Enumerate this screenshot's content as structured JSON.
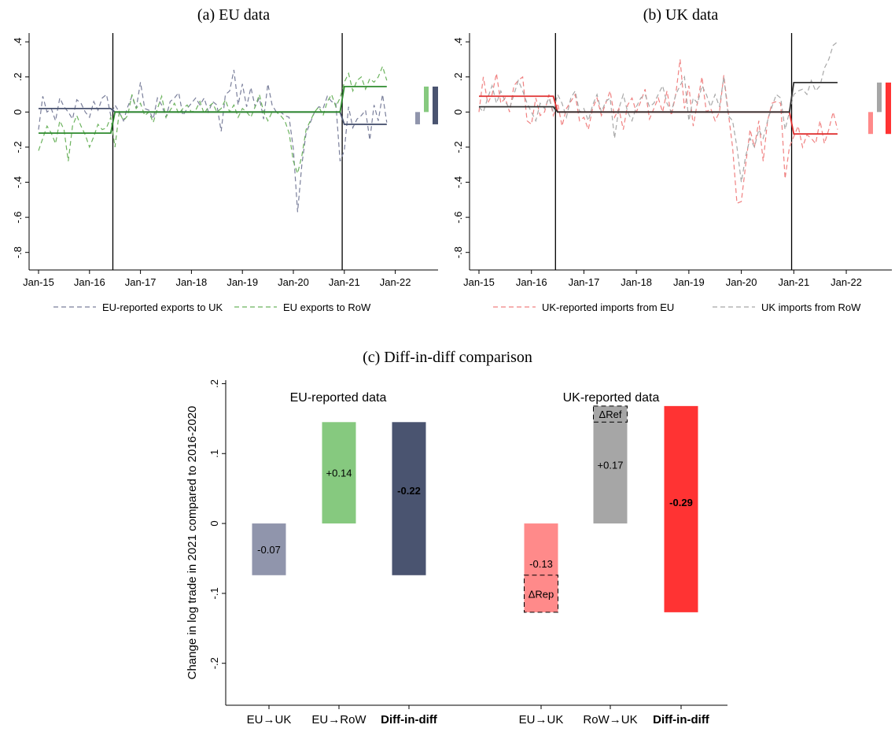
{
  "chart_data": [
    {
      "type": "line",
      "title": "(a) EU data",
      "x_ticks": [
        "Jan-15",
        "Jan-16",
        "Jan-17",
        "Jan-18",
        "Jan-19",
        "Jan-20",
        "Jan-21",
        "Jan-22"
      ],
      "y_ticks": [
        ".4",
        ".2",
        "0",
        "-.2",
        "-.4",
        "-.6",
        "-.8"
      ],
      "ylim": [
        -0.9,
        0.45
      ],
      "x_range_months": [
        "Jan-15",
        "Nov-21"
      ],
      "vlines": [
        "Jun-16",
        "Dec-20"
      ],
      "grid": false,
      "legend_position": "bottom",
      "series": [
        {
          "name": "EU-reported exports to UK",
          "style": "dashed",
          "color": "#7a7f9b",
          "values": [
            -0.1,
            0.09,
            0.0,
            0.02,
            -0.05,
            0.08,
            0.03,
            0.0,
            -0.04,
            0.07,
            0.05,
            0.0,
            -0.03,
            0.06,
            0.01,
            0.08,
            0.1,
            -0.02,
            0.04,
            0.0,
            -0.05,
            0.03,
            0.09,
            0.02,
            0.17,
            0.02,
            0.01,
            -0.04,
            0.08,
            0.04,
            -0.03,
            0.06,
            0.08,
            0.11,
            -0.02,
            0.02,
            0.05,
            0.08,
            0.04,
            0.08,
            0.0,
            0.06,
            0.04,
            -0.11,
            0.1,
            0.12,
            0.24,
            0.04,
            0.16,
            0.03,
            0.14,
            0.03,
            0.08,
            -0.04,
            0.16,
            0.04,
            0.0,
            0.0,
            -0.02,
            -0.03,
            -0.21,
            -0.57,
            -0.3,
            -0.12,
            -0.06,
            0.0,
            0.03,
            0.02,
            0.09,
            0.06,
            0.05,
            -0.28,
            -0.22,
            0.03,
            -0.09,
            -0.04,
            -0.02,
            0.01,
            -0.16,
            0.04,
            -0.05,
            0.1,
            -0.06
          ]
        },
        {
          "name": "EU exports to RoW",
          "style": "dashed",
          "color": "#6cb35e",
          "values": [
            -0.22,
            -0.15,
            -0.08,
            -0.12,
            -0.18,
            -0.05,
            -0.1,
            -0.28,
            -0.08,
            -0.02,
            -0.08,
            -0.13,
            -0.2,
            -0.14,
            -0.07,
            -0.1,
            -0.09,
            -0.03,
            -0.2,
            0.0,
            -0.05,
            -0.02,
            0.1,
            0.02,
            0.05,
            -0.02,
            0.0,
            -0.06,
            0.02,
            0.09,
            -0.03,
            0.01,
            0.05,
            -0.01,
            0.02,
            0.04,
            0.0,
            0.01,
            0.06,
            -0.01,
            0.03,
            0.05,
            0.0,
            0.02,
            0.07,
            0.0,
            0.04,
            -0.03,
            0.02,
            0.0,
            -0.03,
            0.03,
            0.1,
            0.0,
            -0.05,
            0.0,
            0.0,
            -0.02,
            -0.05,
            -0.12,
            -0.28,
            -0.35,
            -0.25,
            -0.1,
            -0.05,
            0.0,
            0.03,
            -0.02,
            0.06,
            0.1,
            0.03,
            0.08,
            0.17,
            0.22,
            0.12,
            0.18,
            0.2,
            0.13,
            0.19,
            0.17,
            0.2,
            0.26,
            0.18
          ]
        },
        {
          "name": "EU-reported exports to UK (mean)",
          "style": "solid",
          "color": "#4a5470",
          "segments": [
            {
              "from": "Jan-15",
              "to": "Jun-16",
              "value": 0.02
            },
            {
              "from": "Jul-16",
              "to": "Dec-20",
              "value": 0.0
            },
            {
              "from": "Jan-21",
              "to": "Nov-21",
              "value": -0.07
            }
          ]
        },
        {
          "name": "EU exports to RoW (mean)",
          "style": "solid",
          "color": "#2e8b2e",
          "segments": [
            {
              "from": "Jan-15",
              "to": "Jun-16",
              "value": -0.12
            },
            {
              "from": "Jul-16",
              "to": "Dec-20",
              "value": 0.0
            },
            {
              "from": "Jan-21",
              "to": "Nov-21",
              "value": 0.145
            }
          ]
        }
      ],
      "side_bars": [
        {
          "color": "#9095ac",
          "from": 0,
          "to": -0.07
        },
        {
          "color": "#86c97f",
          "from": 0,
          "to": 0.145
        },
        {
          "color": "#4a5470",
          "from": -0.07,
          "to": 0.145
        }
      ]
    },
    {
      "type": "line",
      "title": "(b) UK data",
      "x_ticks": [
        "Jan-15",
        "Jan-16",
        "Jan-17",
        "Jan-18",
        "Jan-19",
        "Jan-20",
        "Jan-21",
        "Jan-22"
      ],
      "y_ticks": [
        ".4",
        ".2",
        "0",
        "-.2",
        "-.4",
        "-.6",
        "-.8"
      ],
      "ylim": [
        -0.9,
        0.45
      ],
      "x_range_months": [
        "Jan-15",
        "Nov-21"
      ],
      "vlines": [
        "Jun-16",
        "Dec-20"
      ],
      "grid": false,
      "legend_position": "bottom",
      "series": [
        {
          "name": "UK-reported imports from EU",
          "style": "dashed",
          "color": "#f08080",
          "values": [
            0.0,
            0.2,
            0.05,
            0.1,
            0.22,
            0.05,
            0.08,
            0.0,
            0.15,
            0.18,
            0.2,
            -0.05,
            -0.07,
            0.08,
            -0.02,
            0.0,
            0.1,
            -0.02,
            0.05,
            -0.08,
            0.02,
            0.06,
            0.1,
            -0.05,
            -0.03,
            -0.1,
            0.02,
            0.08,
            -0.02,
            0.05,
            0.12,
            -0.03,
            0.02,
            -0.1,
            0.04,
            0.08,
            0.0,
            0.06,
            0.13,
            -0.04,
            0.02,
            0.08,
            0.0,
            0.12,
            -0.02,
            0.1,
            0.3,
            0.02,
            0.15,
            -0.08,
            0.06,
            0.2,
            0.0,
            0.02,
            -0.05,
            0.0,
            0.21,
            0.0,
            -0.2,
            -0.52,
            -0.51,
            -0.3,
            -0.1,
            -0.2,
            -0.05,
            -0.28,
            -0.05,
            0.05,
            0.06,
            0.05,
            -0.38,
            -0.2,
            -0.14,
            -0.08,
            -0.2,
            -0.13,
            -0.15,
            -0.18,
            -0.05,
            -0.18,
            -0.1,
            0.0,
            -0.1
          ]
        },
        {
          "name": "UK imports from RoW",
          "style": "dashed",
          "color": "#a8a8a8",
          "values": [
            0.03,
            0.0,
            0.08,
            0.15,
            0.05,
            0.12,
            0.06,
            0.02,
            0.1,
            0.18,
            0.12,
            0.05,
            0.0,
            -0.05,
            0.05,
            0.02,
            0.08,
            0.0,
            0.1,
            0.05,
            -0.03,
            0.08,
            0.12,
            0.0,
            0.02,
            -0.05,
            0.04,
            0.1,
            0.0,
            0.06,
            0.08,
            -0.15,
            0.02,
            0.1,
            0.0,
            -0.05,
            0.03,
            0.08,
            0.1,
            0.03,
            0.05,
            0.1,
            0.15,
            0.05,
            0.0,
            0.1,
            0.15,
            0.2,
            -0.05,
            0.08,
            0.05,
            0.15,
            0.1,
            0.03,
            0.1,
            0.03,
            0.2,
            -0.02,
            -0.05,
            -0.2,
            -0.4,
            -0.25,
            -0.15,
            -0.2,
            -0.1,
            -0.15,
            -0.05,
            0.03,
            0.1,
            0.08,
            -0.1,
            0.0,
            0.1,
            0.12,
            0.13,
            0.1,
            0.18,
            0.12,
            0.15,
            0.25,
            0.3,
            0.38,
            0.4
          ]
        },
        {
          "name": "UK-reported imports from EU (mean)",
          "style": "solid",
          "color": "#e03030",
          "segments": [
            {
              "from": "Jan-15",
              "to": "Jun-16",
              "value": 0.09
            },
            {
              "from": "Jul-16",
              "to": "Dec-20",
              "value": 0.0
            },
            {
              "from": "Jan-21",
              "to": "Nov-21",
              "value": -0.125
            }
          ]
        },
        {
          "name": "UK imports from RoW (mean)",
          "style": "solid",
          "color": "#333333",
          "segments": [
            {
              "from": "Jan-15",
              "to": "Jun-16",
              "value": 0.03
            },
            {
              "from": "Jul-16",
              "to": "Dec-20",
              "value": 0.0
            },
            {
              "from": "Jan-21",
              "to": "Nov-21",
              "value": 0.168
            }
          ]
        }
      ],
      "side_bars": [
        {
          "color": "#ff8a8a",
          "from": 0,
          "to": -0.125
        },
        {
          "color": "#a6a6a6",
          "from": 0,
          "to": 0.168
        },
        {
          "color": "#ff3333",
          "from": -0.125,
          "to": 0.168
        }
      ]
    },
    {
      "type": "bar",
      "title": "(c) Diff-in-diff comparison",
      "ylabel": "Change in log trade in 2021 compared to 2016-2020",
      "y_ticks": [
        ".2",
        ".1",
        "0",
        "-.1",
        "-.2"
      ],
      "ylim": [
        -0.26,
        0.205
      ],
      "grid": false,
      "groups": [
        {
          "label": "EU-reported data",
          "bars": [
            {
              "category": "EU→UK",
              "bottom": -0.074,
              "top": 0,
              "label": "-0.07",
              "color": "#9095ac",
              "bold": false
            },
            {
              "category": "EU→RoW",
              "bottom": 0,
              "top": 0.145,
              "label": "+0.14",
              "color": "#86c97f",
              "bold": false
            },
            {
              "category": "Diff-in-diff",
              "bottom": -0.074,
              "top": 0.145,
              "label": "-0.22",
              "color": "#4a5470",
              "bold": true
            }
          ]
        },
        {
          "label": "UK-reported data",
          "bars": [
            {
              "category": "EU→UK",
              "bottom": -0.127,
              "top": 0,
              "label": "-0.13",
              "color": "#ff8a8a",
              "bold": false,
              "box": {
                "label": "ΔRep",
                "bottom": -0.127,
                "top": -0.074
              }
            },
            {
              "category": "RoW→UK",
              "bottom": 0,
              "top": 0.168,
              "label": "+0.17",
              "color": "#a6a6a6",
              "bold": false,
              "box": {
                "label": "ΔRef",
                "bottom": 0.145,
                "top": 0.168
              }
            },
            {
              "category": "Diff-in-diff",
              "bottom": -0.127,
              "top": 0.168,
              "label": "-0.29",
              "color": "#ff3333",
              "bold": true
            }
          ]
        }
      ]
    }
  ]
}
